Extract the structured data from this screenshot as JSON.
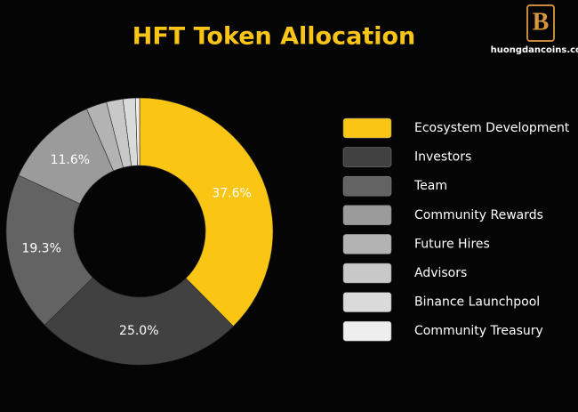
{
  "chart_data": {
    "type": "donut",
    "title": "HFT Token Allocation",
    "watermark": "huongdancoins.com",
    "categories": [
      "Ecosystem Development",
      "Investors",
      "Team",
      "Community Rewards",
      "Future Hires",
      "Advisors",
      "Binance Launchpool",
      "Community Treasury"
    ],
    "values": [
      37.6,
      25.0,
      19.3,
      11.6,
      2.5,
      2.0,
      1.5,
      0.5
    ],
    "value_labels": [
      "37.6%",
      "25.0%",
      "19.3%",
      "11.6%",
      null,
      null,
      null,
      null
    ],
    "colors": [
      "#fbc514",
      "#414141",
      "#636363",
      "#9b9b9b",
      "#b3b3b3",
      "#c8c8c8",
      "#dadada",
      "#eeeeee"
    ],
    "legend": "right"
  }
}
